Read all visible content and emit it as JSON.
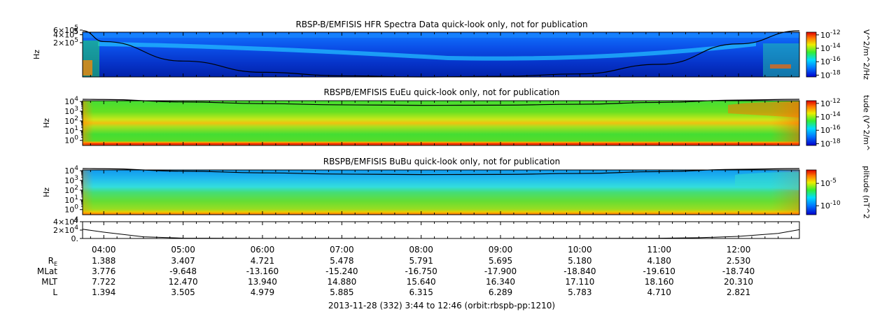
{
  "figure": {
    "footer": "2013-11-28 (332) 3:44 to 12:46 (orbit:rbspb-pp:1210)",
    "time_labels": [
      "04:00",
      "05:00",
      "06:00",
      "07:00",
      "08:00",
      "09:00",
      "10:00",
      "11:00",
      "12:00"
    ],
    "ephemeris": {
      "rows": [
        {
          "label": "R",
          "sub": "E",
          "values": [
            "1.388",
            "3.407",
            "4.721",
            "5.478",
            "5.791",
            "5.695",
            "5.180",
            "4.180",
            "2.530"
          ]
        },
        {
          "label": "MLat",
          "sub": "",
          "values": [
            "3.776",
            "-9.648",
            "-13.160",
            "-15.240",
            "-16.750",
            "-17.900",
            "-18.840",
            "-19.610",
            "-18.740"
          ]
        },
        {
          "label": "MLT",
          "sub": "",
          "values": [
            "7.722",
            "12.470",
            "13.940",
            "14.880",
            "15.640",
            "16.340",
            "17.110",
            "18.160",
            "20.310"
          ]
        },
        {
          "label": "L",
          "sub": "",
          "values": [
            "1.394",
            "3.505",
            "4.979",
            "5.885",
            "6.315",
            "6.289",
            "5.783",
            "4.710",
            "2.821"
          ]
        }
      ]
    }
  },
  "chart_data": [
    {
      "type": "heatmap",
      "title": "RBSP-B/EMFISIS  HFR Spectra Data quick-look only, not for publication",
      "ylabel": "Hz",
      "yscale": "log",
      "ylim": [
        10000,
        500000
      ],
      "yticks": [
        {
          "v": 200000,
          "m": "2×10",
          "e": "5"
        },
        {
          "v": 400000,
          "m": "4×10",
          "e": "5"
        },
        {
          "v": 600000,
          "m": "6×10",
          "e": "5"
        }
      ],
      "ytick_top": "5",
      "colorbar": {
        "label": "V^2/m^2/Hz",
        "ticks": [
          {
            "m": "10",
            "e": "-12"
          },
          {
            "m": "10",
            "e": "-14"
          },
          {
            "m": "10",
            "e": "-16"
          },
          {
            "m": "10",
            "e": "-18"
          }
        ]
      },
      "time_hours": [
        3.733,
        4.0,
        5.0,
        6.0,
        7.0,
        8.0,
        9.0,
        10.0,
        11.0,
        12.0,
        12.767
      ],
      "overlay_hz": [
        600000,
        220000,
        40000,
        15000,
        11000,
        10000,
        10500,
        13000,
        30000,
        180000,
        600000
      ]
    },
    {
      "type": "heatmap",
      "title": "RBSPB/EMFISIS  EuEu quick-look only, not for publication",
      "ylabel": "Hz",
      "yscale": "log",
      "ylim": [
        0.3,
        12000
      ],
      "yticks": [
        {
          "v": 1,
          "m": "10",
          "e": "0"
        },
        {
          "v": 10,
          "m": "10",
          "e": "1"
        },
        {
          "v": 100,
          "m": "10",
          "e": "2"
        },
        {
          "v": 1000,
          "m": "10",
          "e": "3"
        },
        {
          "v": 10000,
          "m": "10",
          "e": "4"
        }
      ],
      "colorbar": {
        "label": "tude (V^2/m^",
        "ticks": [
          {
            "m": "10",
            "e": "-12"
          },
          {
            "m": "10",
            "e": "-14"
          },
          {
            "m": "10",
            "e": "-16"
          },
          {
            "m": "10",
            "e": "-18"
          }
        ]
      },
      "time_hours": [
        3.733,
        4.0,
        5.0,
        6.0,
        7.0,
        8.0,
        9.0,
        10.0,
        11.0,
        12.0,
        12.767
      ],
      "overlay_hz": [
        20000,
        16000,
        9000,
        6000,
        4500,
        4000,
        4200,
        5200,
        8000,
        14000,
        20000
      ]
    },
    {
      "type": "heatmap",
      "title": "RBSPB/EMFISIS  BuBu quick-look only, not for publication",
      "ylabel": "Hz",
      "yscale": "log",
      "ylim": [
        0.3,
        12000
      ],
      "yticks": [
        {
          "v": 1,
          "m": "10",
          "e": "0"
        },
        {
          "v": 10,
          "m": "10",
          "e": "1"
        },
        {
          "v": 100,
          "m": "10",
          "e": "2"
        },
        {
          "v": 1000,
          "m": "10",
          "e": "3"
        },
        {
          "v": 10000,
          "m": "10",
          "e": "4"
        }
      ],
      "colorbar": {
        "label": "plitude (nT^2",
        "ticks": [
          {
            "m": "10",
            "e": "-5"
          },
          {
            "m": "10",
            "e": "-10"
          }
        ]
      },
      "time_hours": [
        3.733,
        4.0,
        5.0,
        6.0,
        7.0,
        8.0,
        9.0,
        10.0,
        11.0,
        12.0,
        12.767
      ],
      "overlay_hz": [
        20000,
        16000,
        9000,
        6000,
        4500,
        4000,
        4200,
        5200,
        8000,
        14000,
        20000
      ]
    },
    {
      "type": "line",
      "title": "",
      "ylabel": "",
      "ylim": [
        0,
        40000
      ],
      "yticks": [
        {
          "v": 0,
          "m": "0.",
          "e": ""
        },
        {
          "v": 20000,
          "m": "2×10",
          "e": "4"
        },
        {
          "v": 40000,
          "m": "4×10",
          "e": "4"
        }
      ],
      "ytick_top": "4",
      "x_hours": [
        3.733,
        4.0,
        4.5,
        5.0,
        6.0,
        7.0,
        8.0,
        9.0,
        10.0,
        11.0,
        11.5,
        12.0,
        12.5,
        12.767
      ],
      "y": [
        22000,
        15000,
        4000,
        900,
        250,
        120,
        80,
        90,
        180,
        600,
        1800,
        5000,
        12000,
        21000
      ]
    }
  ]
}
